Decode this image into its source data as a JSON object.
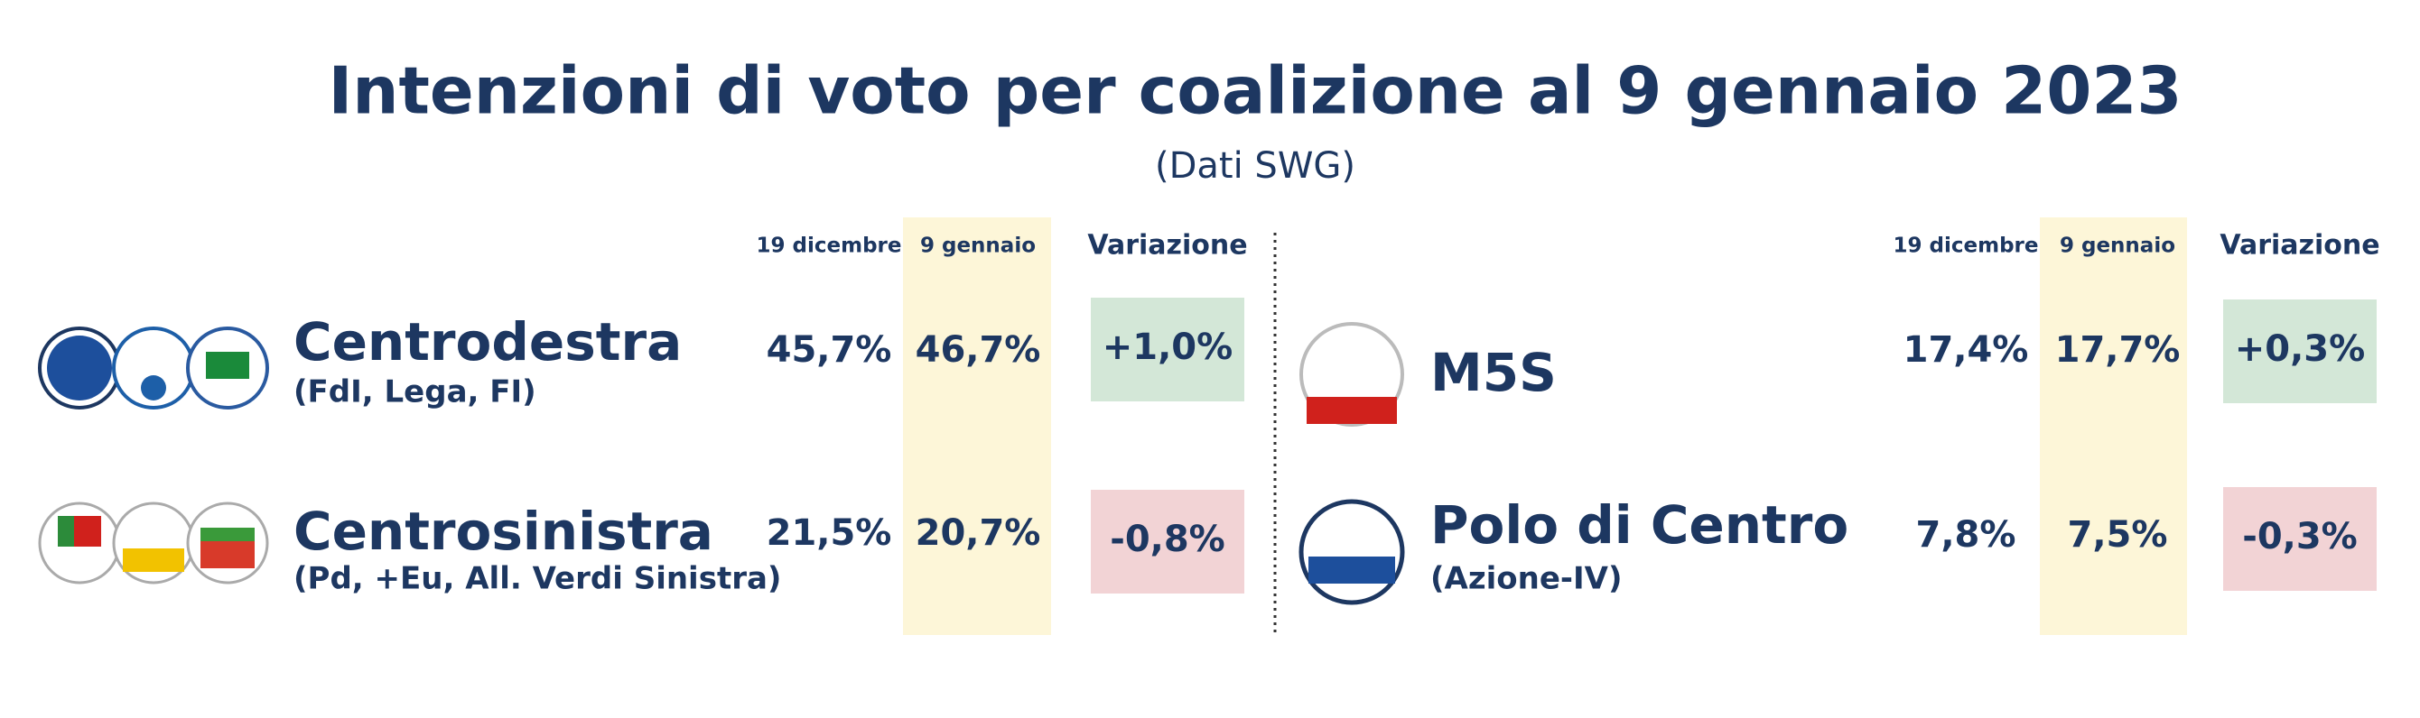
{
  "header": {
    "title": "Intenzioni di voto per coalizione al 9 gennaio 2023",
    "subtitle": "(Dati SWG)"
  },
  "panels": [
    {
      "columns": [
        "19 dicembre",
        "9 gennaio",
        "Variazione"
      ],
      "rows": [
        {
          "name": "Centrodestra",
          "detail": "(FdI, Lega, FI)",
          "values": [
            "45,7%",
            "46,7%",
            "+1,0%"
          ]
        },
        {
          "name": "Centrosinistra",
          "detail": "(Pd, +Eu, All. Verdi Sinistra)",
          "values": [
            "21,5%",
            "20,7%",
            "-0,8%"
          ]
        }
      ]
    },
    {
      "columns": [
        "19 dicembre",
        "9 gennaio",
        "Variazione"
      ],
      "rows": [
        {
          "name": "M5S",
          "values": [
            "17,4%",
            "17,7%",
            "+0,3%"
          ]
        },
        {
          "name": "Polo di Centro",
          "detail": "(Azione-IV)",
          "values": [
            "7,8%",
            "7,5%",
            "-0,3%"
          ]
        }
      ]
    }
  ]
}
